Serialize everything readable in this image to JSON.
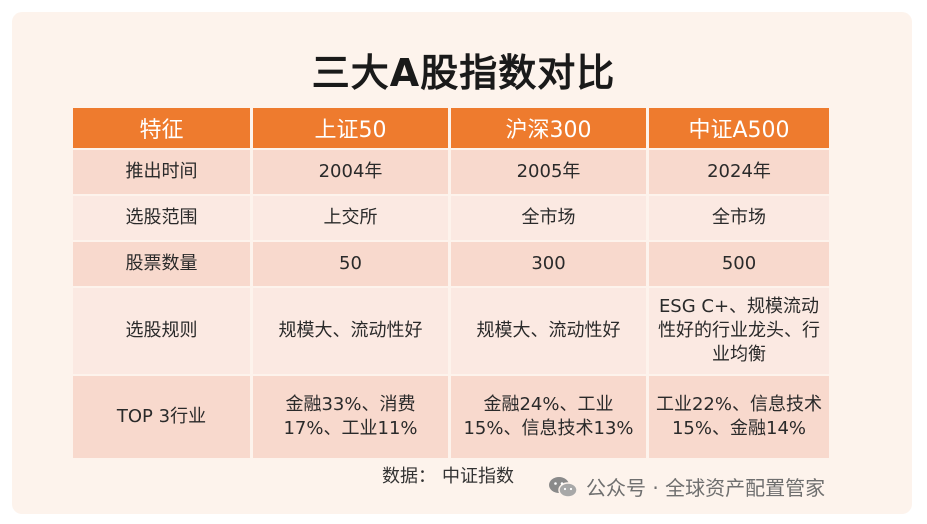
{
  "title": "三大A股指数对比",
  "table": {
    "headers": [
      "特征",
      "上证50",
      "沪深300",
      "中证A500"
    ],
    "rows": [
      [
        "推出时间",
        "2004年",
        "2005年",
        "2024年"
      ],
      [
        "选股范围",
        "上交所",
        "全市场",
        "全市场"
      ],
      [
        "股票数量",
        "50",
        "300",
        "500"
      ],
      [
        "选股规则",
        "规模大、流动性好",
        "规模大、流动性好",
        "ESG C+、规模流动性好的行业龙头、行业均衡"
      ],
      [
        "TOP 3行业",
        "金融33%、消费17%、工业11%",
        "金融24%、工业15%、信息技术13%",
        "工业22%、信息技术15%、金融14%"
      ]
    ]
  },
  "footer": {
    "label": "数据：",
    "source": "中证指数"
  },
  "watermark": {
    "icon": "wechat-icon",
    "text": "公众号 · 全球资产配置管家"
  },
  "colors": {
    "header_bg": "#ee7b2e",
    "row_dark": "#f8d9cd",
    "row_light": "#fbe9e2",
    "card_bg": "#fdf3ec"
  }
}
